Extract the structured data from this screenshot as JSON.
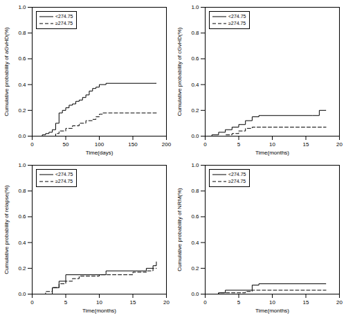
{
  "chart_data": [
    {
      "type": "step",
      "xlabel": "Time(days)",
      "ylabel": "Cumulative probability of aGvHD(%)",
      "xlim": [
        0,
        200
      ],
      "ylim": [
        0,
        1.0
      ],
      "xticks": [
        0,
        50,
        100,
        150,
        200
      ],
      "yticks": [
        {
          "value": 0,
          "label": "0.0"
        },
        0.2,
        0.4,
        0.6,
        0.8,
        {
          "value": 1,
          "label": "1.0"
        }
      ],
      "grid": false,
      "legend": "upper left",
      "series": [
        {
          "name": "<274.75",
          "color": "#000000",
          "line_style": "solid",
          "x": [
            0,
            10,
            15,
            20,
            25,
            30,
            35,
            40,
            45,
            50,
            55,
            60,
            65,
            70,
            75,
            80,
            85,
            90,
            95,
            100,
            110,
            185
          ],
          "values": [
            0.0,
            0.0,
            0.01,
            0.02,
            0.03,
            0.05,
            0.1,
            0.18,
            0.2,
            0.22,
            0.24,
            0.25,
            0.27,
            0.28,
            0.3,
            0.32,
            0.35,
            0.37,
            0.38,
            0.4,
            0.41,
            0.41
          ]
        },
        {
          "name": "≥274.75",
          "color": "#000000",
          "line_style": "dashed",
          "x": [
            0,
            30,
            35,
            40,
            50,
            60,
            70,
            80,
            90,
            95,
            100,
            105,
            110,
            185
          ],
          "values": [
            0.0,
            0.0,
            0.02,
            0.04,
            0.06,
            0.08,
            0.1,
            0.12,
            0.13,
            0.15,
            0.17,
            0.18,
            0.18,
            0.18
          ]
        }
      ]
    },
    {
      "type": "step",
      "xlabel": "Time(months)",
      "ylabel": "Cumulative probability of cGvHD(%)",
      "xlim": [
        0,
        20
      ],
      "ylim": [
        0,
        1.0
      ],
      "xticks": [
        0,
        5,
        10,
        15,
        20
      ],
      "yticks": [
        {
          "value": 0,
          "label": "0.0"
        },
        0.2,
        0.4,
        0.6,
        0.8,
        {
          "value": 1,
          "label": "1.0"
        }
      ],
      "grid": false,
      "legend": "upper left",
      "series": [
        {
          "name": "<274.75",
          "color": "#000000",
          "line_style": "solid",
          "x": [
            0,
            1,
            2,
            3,
            4,
            5,
            6,
            7,
            8,
            16,
            17,
            18
          ],
          "values": [
            0.0,
            0.01,
            0.03,
            0.05,
            0.07,
            0.09,
            0.12,
            0.15,
            0.16,
            0.16,
            0.2,
            0.2
          ]
        },
        {
          "name": "≥274.75",
          "color": "#000000",
          "line_style": "dashed",
          "x": [
            0,
            2,
            3,
            4,
            5,
            6,
            7,
            8,
            18
          ],
          "values": [
            0.0,
            0.0,
            0.01,
            0.02,
            0.04,
            0.06,
            0.07,
            0.07,
            0.07
          ]
        }
      ]
    },
    {
      "type": "step",
      "xlabel": "Time(months)",
      "ylabel": "Cumulative probability of relapse(%)",
      "xlim": [
        0,
        20
      ],
      "ylim": [
        0,
        1.0
      ],
      "xticks": [
        0,
        5,
        10,
        15,
        20
      ],
      "yticks": [
        {
          "value": 0,
          "label": "0.0"
        },
        0.2,
        0.4,
        0.6,
        0.8,
        {
          "value": 1,
          "label": "1.0"
        }
      ],
      "grid": false,
      "legend": "upper left",
      "series": [
        {
          "name": "<274.75",
          "color": "#000000",
          "line_style": "solid",
          "x": [
            0,
            2,
            3,
            4,
            5,
            10,
            11,
            17,
            18,
            18.5
          ],
          "values": [
            0.0,
            0.0,
            0.05,
            0.1,
            0.15,
            0.15,
            0.18,
            0.2,
            0.22,
            0.25
          ]
        },
        {
          "name": "≥274.75",
          "color": "#000000",
          "line_style": "dashed",
          "x": [
            0,
            2,
            3,
            4,
            5,
            6,
            7,
            10,
            15,
            17,
            18,
            18.5
          ],
          "values": [
            0.0,
            0.02,
            0.05,
            0.08,
            0.1,
            0.12,
            0.14,
            0.15,
            0.17,
            0.18,
            0.2,
            0.2
          ]
        }
      ]
    },
    {
      "type": "step",
      "xlabel": "Time(months)",
      "ylabel": "Cumulative probability of NRM(%)",
      "xlim": [
        0,
        20
      ],
      "ylim": [
        0,
        1.0
      ],
      "xticks": [
        0,
        5,
        10,
        15,
        20
      ],
      "yticks": [
        {
          "value": 0,
          "label": "0.0"
        },
        0.2,
        0.4,
        0.6,
        0.8,
        {
          "value": 1,
          "label": "1.0"
        }
      ],
      "grid": false,
      "legend": "upper left",
      "series": [
        {
          "name": "<274.75",
          "color": "#000000",
          "line_style": "solid",
          "x": [
            0,
            2,
            3,
            7,
            8,
            18
          ],
          "values": [
            0.0,
            0.01,
            0.03,
            0.07,
            0.08,
            0.08
          ]
        },
        {
          "name": "≥274.75",
          "color": "#000000",
          "line_style": "dashed",
          "x": [
            0,
            2,
            6,
            7,
            18
          ],
          "values": [
            0.0,
            0.01,
            0.02,
            0.03,
            0.03
          ]
        }
      ]
    }
  ]
}
